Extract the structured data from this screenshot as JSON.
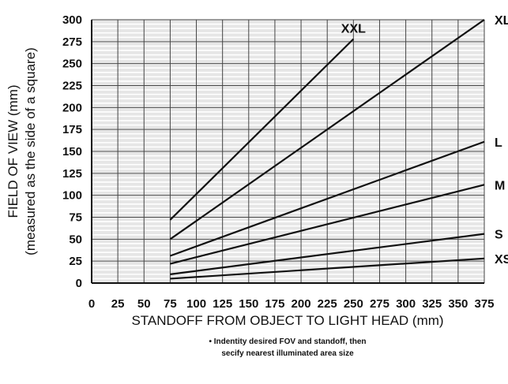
{
  "chart_data": {
    "type": "line",
    "title": "",
    "xlabel": "STANDOFF FROM OBJECT TO LIGHT HEAD (mm)",
    "ylabel": "FIELD OF VIEW (mm)",
    "ylabel_sub": "(measured as the side of a square)",
    "xlim": [
      0,
      375
    ],
    "ylim": [
      0,
      300
    ],
    "xticks": [
      0,
      25,
      50,
      75,
      100,
      125,
      150,
      175,
      200,
      225,
      250,
      275,
      300,
      325,
      350,
      375
    ],
    "yticks": [
      0,
      25,
      50,
      75,
      100,
      125,
      150,
      175,
      200,
      225,
      250,
      275,
      300
    ],
    "grid": true,
    "legend": "none",
    "series": [
      {
        "name": "XXL",
        "x": [
          75,
          250
        ],
        "y": [
          72,
          278
        ]
      },
      {
        "name": "XL",
        "x": [
          75,
          375
        ],
        "y": [
          50,
          300
        ]
      },
      {
        "name": "L",
        "x": [
          75,
          375
        ],
        "y": [
          31,
          161
        ]
      },
      {
        "name": "M",
        "x": [
          75,
          375
        ],
        "y": [
          22,
          112
        ]
      },
      {
        "name": "S",
        "x": [
          75,
          375
        ],
        "y": [
          10,
          56
        ]
      },
      {
        "name": "XS",
        "x": [
          75,
          375
        ],
        "y": [
          5,
          28
        ]
      }
    ],
    "annotations": [
      "• Indentity desired FOV and standoff, then",
      "secify nearest illuminated area size"
    ]
  }
}
